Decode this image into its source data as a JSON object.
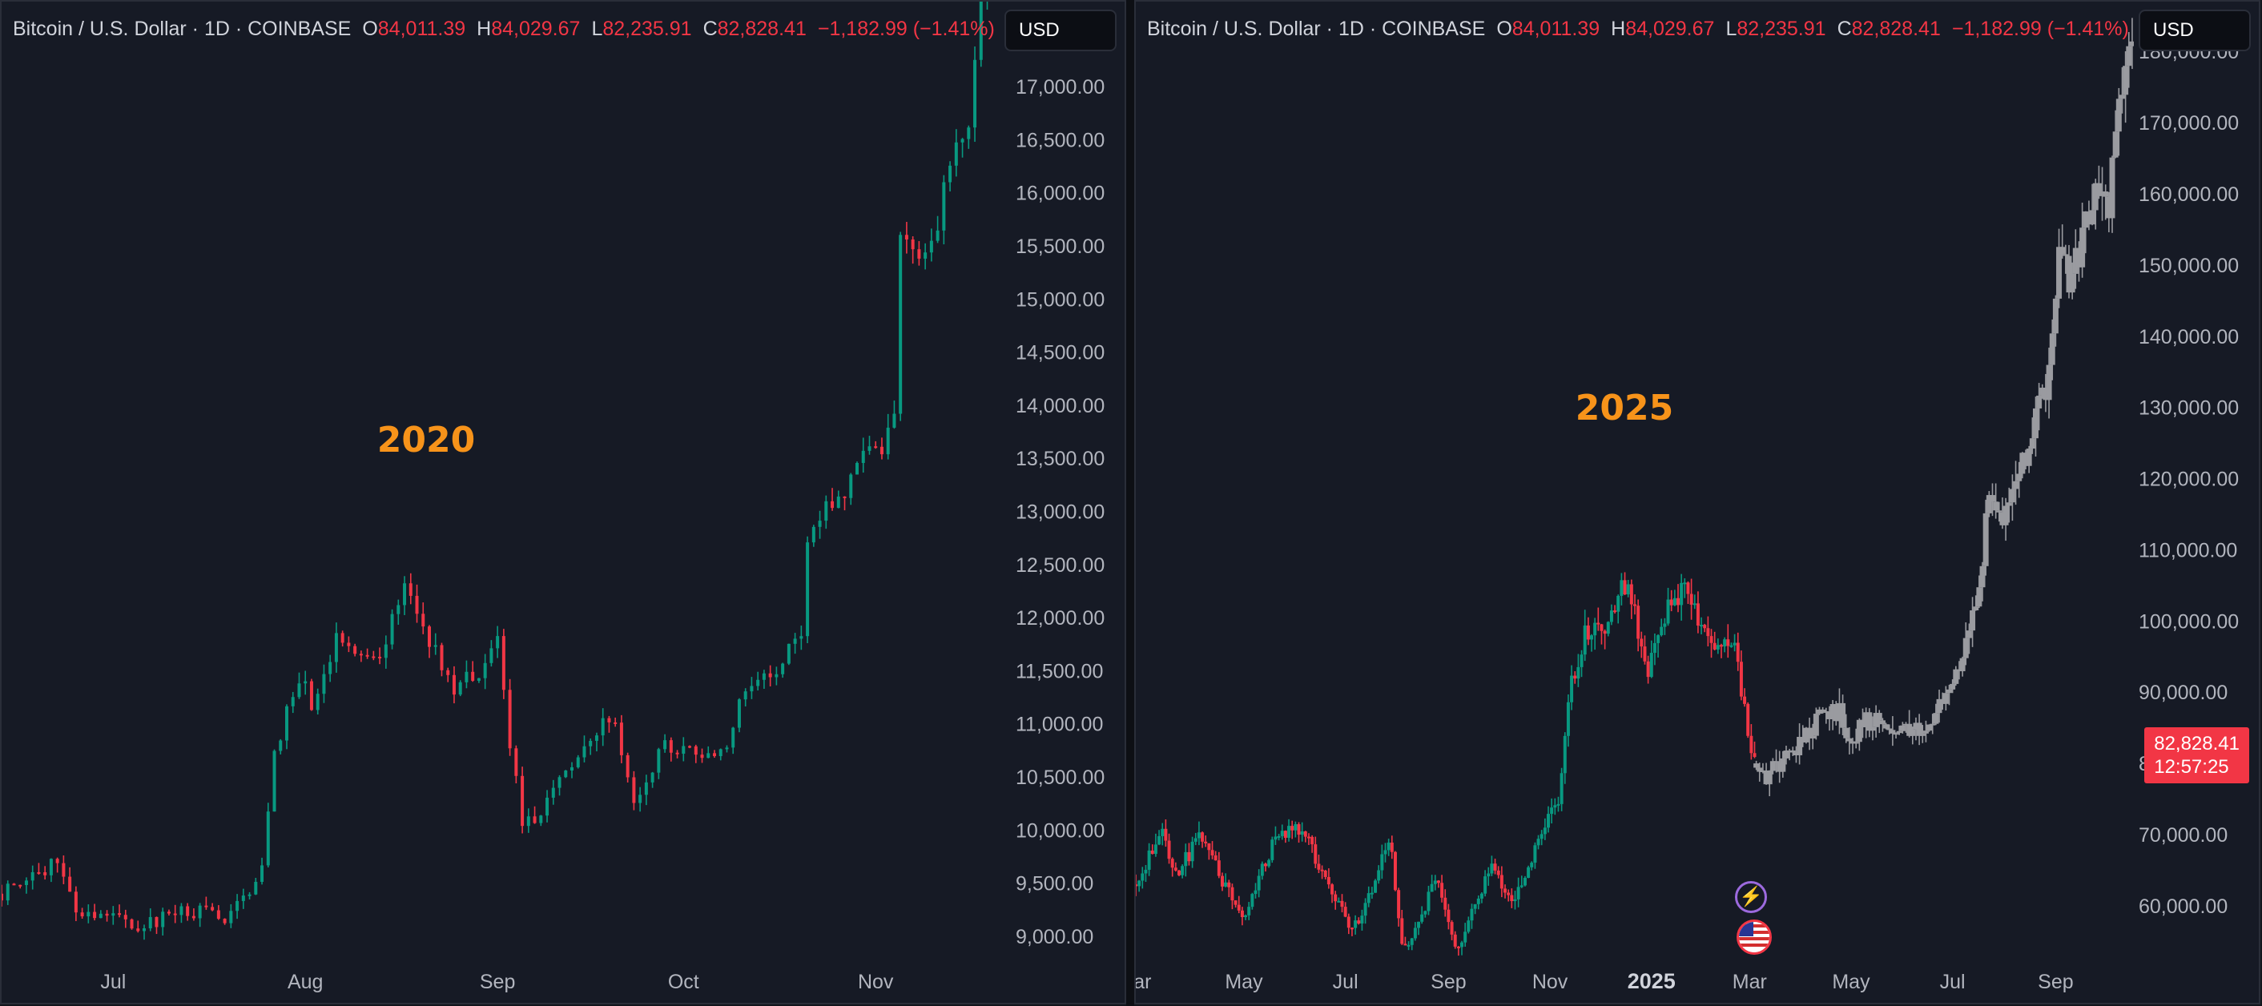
{
  "header": {
    "symbol": "Bitcoin / U.S. Dollar · 1D · COINBASE",
    "o_label": "O",
    "o_value": "84,011.39",
    "h_label": "H",
    "h_value": "84,029.67",
    "l_label": "L",
    "l_value": "82,235.91",
    "c_label": "C",
    "c_value": "82,828.41",
    "change": "−1,182.99 (−1.41%)"
  },
  "currency_button": "USD",
  "colors": {
    "up": "#089981",
    "down": "#f23645",
    "projection": "#9a9ba0",
    "annotation": "#f7931a",
    "background": "#161a25",
    "axis_text": "#b2b5be"
  },
  "price_tag": {
    "price": "82,828.41",
    "countdown": "12:57:25"
  },
  "event_icons": [
    "lightning-icon",
    "us-flag-icon"
  ],
  "chart_data": [
    {
      "type": "candlestick",
      "title": "2020",
      "y_ticks": [
        9000,
        9500,
        10000,
        10500,
        11000,
        11500,
        12000,
        12500,
        13000,
        13500,
        14000,
        14500,
        15000,
        15500,
        16000,
        16500,
        17000
      ],
      "y_tick_labels": [
        "9,000.00",
        "9,500.00",
        "10,000.00",
        "10,500.00",
        "11,000.00",
        "11,500.00",
        "12,000.00",
        "12,500.00",
        "13,000.00",
        "13,500.00",
        "14,000.00",
        "14,500.00",
        "15,000.00",
        "15,500.00",
        "16,000.00",
        "16,500.00",
        "17,000.00"
      ],
      "ylim": [
        8750,
        17800
      ],
      "x_labels": [
        "Jul",
        "Aug",
        "Sep",
        "Oct",
        "Nov"
      ],
      "x_label_dates": [
        "2020-07-01",
        "2020-08-01",
        "2020-09-01",
        "2020-10-01",
        "2020-11-01"
      ],
      "x_range": [
        "2020-06-13",
        "2020-11-21"
      ],
      "close_path": [
        [
          "2020-06-13",
          9400
        ],
        [
          "2020-06-22",
          9700
        ],
        [
          "2020-06-25",
          9250
        ],
        [
          "2020-07-06",
          9100
        ],
        [
          "2020-07-12",
          9250
        ],
        [
          "2020-07-20",
          9180
        ],
        [
          "2020-07-22",
          9350
        ],
        [
          "2020-07-25",
          9600
        ],
        [
          "2020-07-27",
          10700
        ],
        [
          "2020-07-29",
          11100
        ],
        [
          "2020-08-01",
          11400
        ],
        [
          "2020-08-02",
          11100
        ],
        [
          "2020-08-06",
          11800
        ],
        [
          "2020-08-10",
          11700
        ],
        [
          "2020-08-13",
          11600
        ],
        [
          "2020-08-17",
          12300
        ],
        [
          "2020-08-20",
          11900
        ],
        [
          "2020-08-25",
          11350
        ],
        [
          "2020-08-29",
          11500
        ],
        [
          "2020-09-01",
          11900
        ],
        [
          "2020-09-03",
          10800
        ],
        [
          "2020-09-05",
          10100
        ],
        [
          "2020-09-08",
          10150
        ],
        [
          "2020-09-10",
          10350
        ],
        [
          "2020-09-15",
          10750
        ],
        [
          "2020-09-18",
          11000
        ],
        [
          "2020-09-20",
          11000
        ],
        [
          "2020-09-23",
          10300
        ],
        [
          "2020-09-28",
          10800
        ],
        [
          "2020-10-06",
          10650
        ],
        [
          "2020-10-09",
          10950
        ],
        [
          "2020-10-11",
          11350
        ],
        [
          "2020-10-16",
          11450
        ],
        [
          "2020-10-20",
          11900
        ],
        [
          "2020-10-21",
          12800
        ],
        [
          "2020-10-24",
          13050
        ],
        [
          "2020-10-26",
          13100
        ],
        [
          "2020-10-28",
          13300
        ],
        [
          "2020-10-30",
          13500
        ],
        [
          "2020-11-02",
          13600
        ],
        [
          "2020-11-04",
          14000
        ],
        [
          "2020-11-05",
          15500
        ],
        [
          "2020-11-09",
          15350
        ],
        [
          "2020-11-11",
          15700
        ],
        [
          "2020-11-13",
          16300
        ],
        [
          "2020-11-16",
          16700
        ],
        [
          "2020-11-18",
          17800
        ],
        [
          "2020-11-21",
          18500
        ]
      ]
    },
    {
      "type": "candlestick",
      "title": "2025",
      "y_ticks": [
        60000,
        70000,
        80000,
        90000,
        100000,
        110000,
        120000,
        130000,
        140000,
        150000,
        160000,
        170000,
        180000
      ],
      "y_tick_labels": [
        "60,000.00",
        "70,000.00",
        "80,000.00",
        "90,000.00",
        "100,000.00",
        "110,000.00",
        "120,000.00",
        "130,000.00",
        "140,000.00",
        "150,000.00",
        "160,000.00",
        "170,000.00",
        "180,000.00"
      ],
      "ylim": [
        52000,
        187000
      ],
      "x_labels": [
        "ar",
        "May",
        "Jul",
        "Sep",
        "Nov",
        "2025",
        "Mar",
        "May",
        "Jul",
        "Sep"
      ],
      "x_label_dates": [
        "2024-03-01",
        "2024-05-01",
        "2024-07-01",
        "2024-09-01",
        "2024-11-01",
        "2025-01-01",
        "2025-03-01",
        "2025-05-01",
        "2025-07-01",
        "2025-09-01"
      ],
      "x_range": [
        "2024-02-26",
        "2025-10-18"
      ],
      "actual_close_path": [
        [
          "2024-02-26",
          63000
        ],
        [
          "2024-03-13",
          71000
        ],
        [
          "2024-03-20",
          64000
        ],
        [
          "2024-04-05",
          70000
        ],
        [
          "2024-04-19",
          63000
        ],
        [
          "2024-05-01",
          58000
        ],
        [
          "2024-05-20",
          70000
        ],
        [
          "2024-06-05",
          71000
        ],
        [
          "2024-06-25",
          61000
        ],
        [
          "2024-07-05",
          56000
        ],
        [
          "2024-07-28",
          69000
        ],
        [
          "2024-08-05",
          53000
        ],
        [
          "2024-08-25",
          64000
        ],
        [
          "2024-09-06",
          54000
        ],
        [
          "2024-09-27",
          66000
        ],
        [
          "2024-10-10",
          60000
        ],
        [
          "2024-10-29",
          72000
        ],
        [
          "2024-11-06",
          75000
        ],
        [
          "2024-11-13",
          90000
        ],
        [
          "2024-11-22",
          98000
        ],
        [
          "2024-12-05",
          100000
        ],
        [
          "2024-12-17",
          106000
        ],
        [
          "2024-12-30",
          92000
        ],
        [
          "2025-01-06",
          100000
        ],
        [
          "2025-01-20",
          105000
        ],
        [
          "2025-01-30",
          100000
        ],
        [
          "2025-02-10",
          97000
        ],
        [
          "2025-02-20",
          96000
        ],
        [
          "2025-02-28",
          84000
        ],
        [
          "2025-03-05",
          80000
        ]
      ],
      "projection_close_path": [
        [
          "2025-03-05",
          80000
        ],
        [
          "2025-03-10",
          78000
        ],
        [
          "2025-03-15",
          79000
        ],
        [
          "2025-03-25",
          81000
        ],
        [
          "2025-04-05",
          84000
        ],
        [
          "2025-04-15",
          88000
        ],
        [
          "2025-04-25",
          87000
        ],
        [
          "2025-05-01",
          83000
        ],
        [
          "2025-05-10",
          86000
        ],
        [
          "2025-05-25",
          85000
        ],
        [
          "2025-06-05",
          84000
        ],
        [
          "2025-06-20",
          86000
        ],
        [
          "2025-06-28",
          91000
        ],
        [
          "2025-07-08",
          95000
        ],
        [
          "2025-07-18",
          105000
        ],
        [
          "2025-07-22",
          117000
        ],
        [
          "2025-07-30",
          115000
        ],
        [
          "2025-08-10",
          120000
        ],
        [
          "2025-08-20",
          128000
        ],
        [
          "2025-08-28",
          135000
        ],
        [
          "2025-09-03",
          150000
        ],
        [
          "2025-09-10",
          148000
        ],
        [
          "2025-09-18",
          155000
        ],
        [
          "2025-09-25",
          160000
        ],
        [
          "2025-10-03",
          158000
        ],
        [
          "2025-10-10",
          175000
        ],
        [
          "2025-10-18",
          186000
        ]
      ]
    }
  ]
}
